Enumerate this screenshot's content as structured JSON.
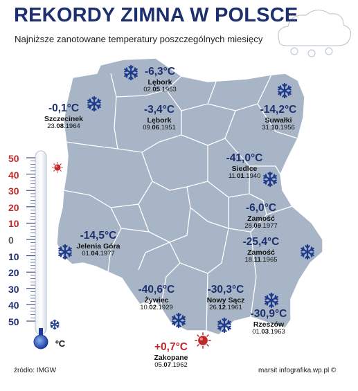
{
  "title": "REKORDY ZIMNA W POLSCE",
  "subtitle": "Najniższe zanotowane temperatury poszczególnych miesięcy",
  "records": [
    {
      "temp": "-6,3°C",
      "city": "Lębork",
      "date_pre": "02.",
      "date_bold": "05",
      "date_post": ".1953",
      "icon": "snowflake-icon"
    },
    {
      "temp": "-0,1°C",
      "city": "Szczecinek",
      "date_pre": "23.",
      "date_bold": "08",
      "date_post": ".1964",
      "icon": "snowflake-icon"
    },
    {
      "temp": "-3,4°C",
      "city": "Lębork",
      "date_pre": "09.",
      "date_bold": "06",
      "date_post": ".1951",
      "icon": "none"
    },
    {
      "temp": "-14,2°C",
      "city": "Suwałki",
      "date_pre": "31.",
      "date_bold": "10",
      "date_post": ".1956",
      "icon": "snowflake-icon"
    },
    {
      "temp": "-41,0°C",
      "city": "Siedlce",
      "date_pre": "11.",
      "date_bold": "01",
      "date_post": ".1940",
      "icon": "snowflake-icon"
    },
    {
      "temp": "-6,0°C",
      "city": "Zamość",
      "date_pre": "28.",
      "date_bold": "09",
      "date_post": ".1977",
      "icon": "none"
    },
    {
      "temp": "-25,4°C",
      "city": "Zamość",
      "date_pre": "18.",
      "date_bold": "11",
      "date_post": ".1965",
      "icon": "snowflake-icon"
    },
    {
      "temp": "-14,5°C",
      "city": "Jelenia Góra",
      "date_pre": "01.",
      "date_bold": "04",
      "date_post": ".1977",
      "icon": "snowflake-icon"
    },
    {
      "temp": "-40,6°C",
      "city": "Żywiec",
      "date_pre": "10.",
      "date_bold": "02",
      "date_post": ".1929",
      "icon": "snowflake-icon"
    },
    {
      "temp": "-30,3°C",
      "city": "Nowy Sącz",
      "date_pre": "26.",
      "date_bold": "12",
      "date_post": ".1961",
      "icon": "snowflake-icon"
    },
    {
      "temp": "-30,9°C",
      "city": "Rzeszów",
      "date_pre": "01.",
      "date_bold": "03",
      "date_post": ".1963",
      "icon": "snowflake-icon"
    },
    {
      "temp": "+0,7°C",
      "city": "Zakopane",
      "date_pre": "05.",
      "date_bold": "07",
      "date_post": ".1962",
      "icon": "sun-icon"
    }
  ],
  "thermometer": {
    "scale": [
      "50",
      "40",
      "30",
      "20",
      "10",
      "0",
      "10",
      "20",
      "30",
      "40",
      "50"
    ],
    "unit": "ºC",
    "level": -50,
    "range": [
      -50,
      50
    ]
  },
  "source": "źródło: IMGW",
  "credit": "marsit infografika.wp.pl ©",
  "colors": {
    "map_fill": "#a8b5c6",
    "borders": "#ffffff",
    "title": "#1d2f6e",
    "warm": "#c0282a",
    "cold_scale": "#1d2f6e",
    "warm_scale": "#c0282a"
  }
}
